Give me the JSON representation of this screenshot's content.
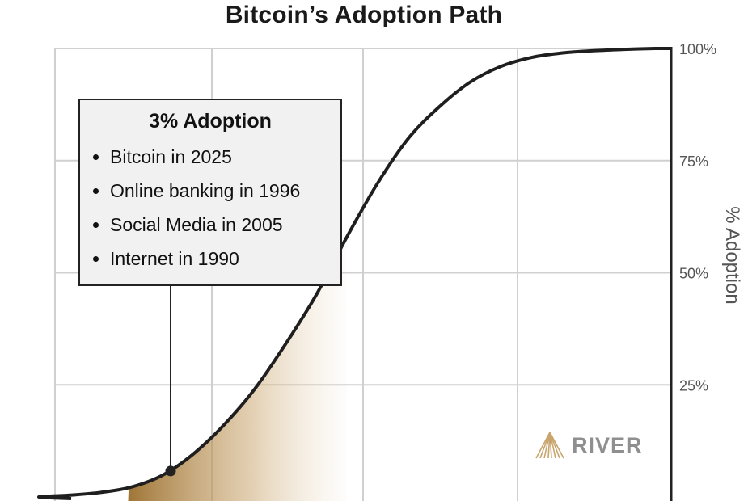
{
  "chart_data": {
    "type": "area",
    "title": "Bitcoin’s Adoption Path",
    "ylabel": "% Adoption",
    "xlabel": "",
    "ylim": [
      0,
      100
    ],
    "y_ticks": [
      "100%",
      "75%",
      "50%",
      "25%"
    ],
    "y_tick_values": [
      100,
      75,
      50,
      25
    ],
    "grid": true,
    "series": [
      {
        "x": [
          0,
          5,
          10,
          15,
          20,
          25,
          30,
          35,
          40,
          45,
          50,
          55,
          60,
          65,
          70,
          75,
          80,
          85,
          90,
          95,
          100
        ],
        "values": [
          0.0,
          0.4,
          1.0,
          2.2,
          4.8,
          9.5,
          16,
          24,
          34,
          45,
          58,
          70,
          80,
          87,
          92.5,
          96,
          98,
          99,
          99.5,
          99.8,
          100
        ]
      }
    ],
    "highlight_point": {
      "x": 14.5,
      "y": 3
    },
    "shaded_range_x": [
      14.5,
      50
    ]
  },
  "callout": {
    "title": "3% Adoption",
    "items": [
      "Bitcoin in 2025",
      "Online banking in 1996",
      "Social Media in 2005",
      "Internet in 1990"
    ]
  },
  "brand": {
    "name": "RIVER",
    "icon": "river-mountain-icon"
  },
  "colors": {
    "curve": "#1f1f1f",
    "grid": "#d0d0d0",
    "fill": "#b89154",
    "axis": "#222222",
    "callout_bg": "#f1f1f1"
  }
}
